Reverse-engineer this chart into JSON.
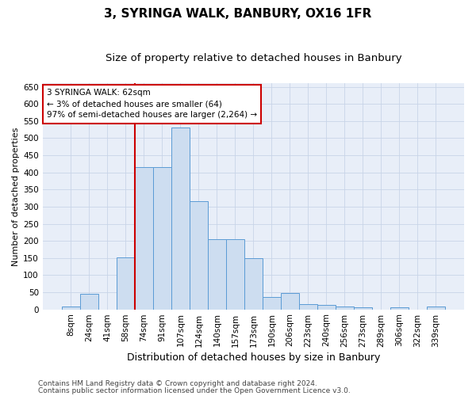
{
  "title": "3, SYRINGA WALK, BANBURY, OX16 1FR",
  "subtitle": "Size of property relative to detached houses in Banbury",
  "xlabel": "Distribution of detached houses by size in Banbury",
  "ylabel": "Number of detached properties",
  "categories": [
    "8sqm",
    "24sqm",
    "41sqm",
    "58sqm",
    "74sqm",
    "91sqm",
    "107sqm",
    "124sqm",
    "140sqm",
    "157sqm",
    "173sqm",
    "190sqm",
    "206sqm",
    "223sqm",
    "240sqm",
    "256sqm",
    "273sqm",
    "289sqm",
    "306sqm",
    "322sqm",
    "339sqm"
  ],
  "values": [
    8,
    45,
    0,
    152,
    415,
    415,
    530,
    315,
    204,
    204,
    150,
    35,
    48,
    15,
    13,
    8,
    5,
    0,
    7,
    0,
    8
  ],
  "bar_color": "#cdddf0",
  "bar_edge_color": "#5b9bd5",
  "vline_x_index": 3,
  "vline_color": "#cc0000",
  "annotation_text": "3 SYRINGA WALK: 62sqm\n← 3% of detached houses are smaller (64)\n97% of semi-detached houses are larger (2,264) →",
  "annotation_box_color": "#ffffff",
  "annotation_box_edge": "#cc0000",
  "ylim": [
    0,
    660
  ],
  "yticks": [
    0,
    50,
    100,
    150,
    200,
    250,
    300,
    350,
    400,
    450,
    500,
    550,
    600,
    650
  ],
  "grid_color": "#c8d4e8",
  "bg_color": "#e8eef8",
  "footer1": "Contains HM Land Registry data © Crown copyright and database right 2024.",
  "footer2": "Contains public sector information licensed under the Open Government Licence v3.0.",
  "title_fontsize": 11,
  "subtitle_fontsize": 9.5,
  "xlabel_fontsize": 9,
  "ylabel_fontsize": 8,
  "tick_fontsize": 7.5,
  "annot_fontsize": 7.5,
  "footer_fontsize": 6.5
}
